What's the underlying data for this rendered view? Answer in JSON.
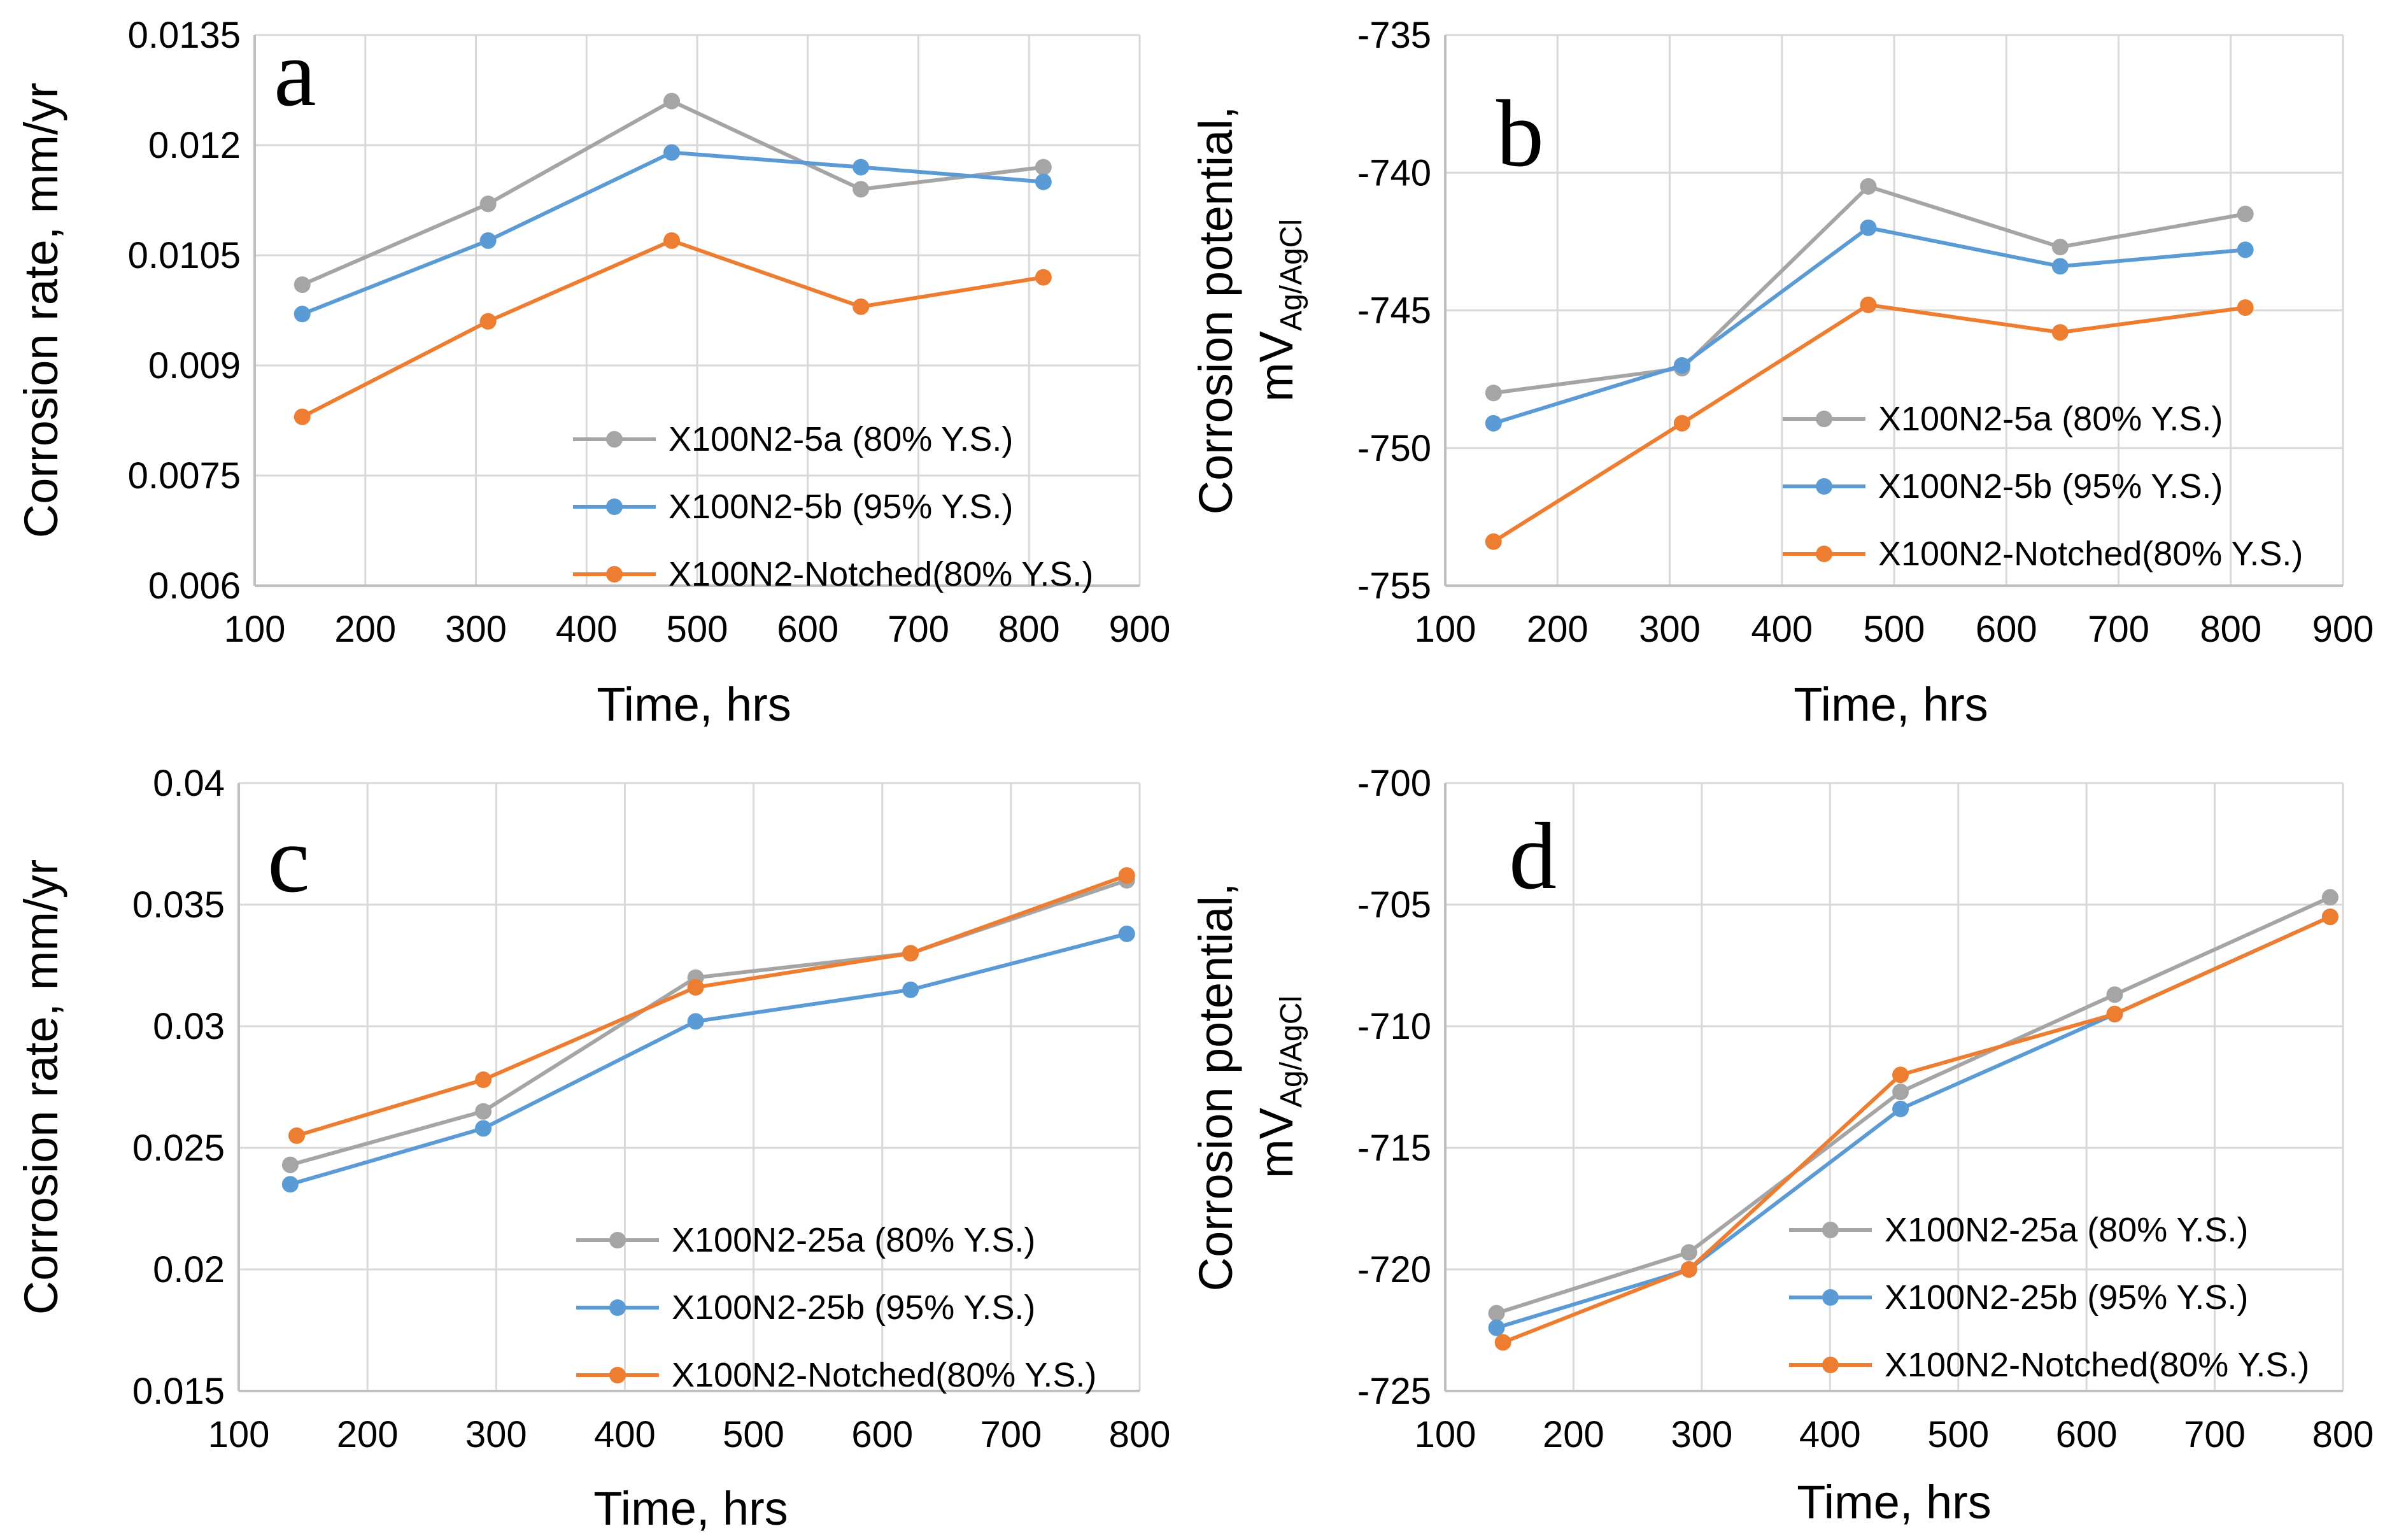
{
  "colors": {
    "gray": "#A5A5A5",
    "blue": "#5B9BD5",
    "orange": "#ED7D31",
    "grid": "#D9D9D9",
    "axis": "#BFBFBF"
  },
  "chart_data": [
    {
      "panel": "a",
      "type": "line",
      "xlabel": "Time, hrs",
      "ylabel": "Corrosion rate, mm/yr",
      "xlim": [
        100,
        900
      ],
      "xticks": [
        "100",
        "200",
        "300",
        "400",
        "500",
        "600",
        "700",
        "800",
        "900"
      ],
      "ylim": [
        0.006,
        0.0135
      ],
      "yticks": [
        "0.006",
        "0.0075",
        "0.009",
        "0.0105",
        "0.012",
        "0.0135"
      ],
      "grid": true,
      "legend_position": "bottom-right",
      "series": [
        {
          "name": "X100N2-5a (80% Y.S.)",
          "color": "gray",
          "x": [
            143,
            311,
            477,
            648,
            813
          ],
          "y": [
            0.0101,
            0.0112,
            0.0126,
            0.0114,
            0.0117
          ]
        },
        {
          "name": "X100N2-5b (95% Y.S.)",
          "color": "blue",
          "x": [
            143,
            311,
            477,
            648,
            813
          ],
          "y": [
            0.0097,
            0.0107,
            0.0119,
            0.0117,
            0.0115
          ]
        },
        {
          "name": "X100N2-Notched(80% Y.S.)",
          "color": "orange",
          "x": [
            143,
            311,
            477,
            648,
            813
          ],
          "y": [
            0.0083,
            0.0096,
            0.0107,
            0.0098,
            0.0102
          ]
        }
      ]
    },
    {
      "panel": "b",
      "type": "line",
      "xlabel": "Time, hrs",
      "ylabel": "Corrosion potential,",
      "ylabel_line2": "mV",
      "ylabel_sub": "Ag/AgCl",
      "xlim": [
        100,
        900
      ],
      "xticks": [
        "100",
        "200",
        "300",
        "400",
        "500",
        "600",
        "700",
        "800",
        "900"
      ],
      "ylim": [
        -755,
        -735
      ],
      "yticks": [
        "-755",
        "-750",
        "-745",
        "-740",
        "-735"
      ],
      "grid": true,
      "legend_position": "bottom-right",
      "series": [
        {
          "name": "X100N2-5a (80% Y.S.)",
          "color": "gray",
          "x": [
            143,
            311,
            477,
            648,
            813
          ],
          "y": [
            -748.0,
            -747.1,
            -740.5,
            -742.7,
            -741.5
          ]
        },
        {
          "name": "X100N2-5b (95% Y.S.)",
          "color": "blue",
          "x": [
            143,
            311,
            477,
            648,
            813
          ],
          "y": [
            -749.1,
            -747.0,
            -742.0,
            -743.4,
            -742.8
          ]
        },
        {
          "name": "X100N2-Notched(80% Y.S.)",
          "color": "orange",
          "x": [
            143,
            311,
            477,
            648,
            813
          ],
          "y": [
            -753.4,
            -749.1,
            -744.8,
            -745.8,
            -744.9
          ]
        }
      ]
    },
    {
      "panel": "c",
      "type": "line",
      "xlabel": "Time, hrs",
      "ylabel": "Corrosion rate, mm/yr",
      "xlim": [
        100,
        800
      ],
      "xticks": [
        "100",
        "200",
        "300",
        "400",
        "500",
        "600",
        "700",
        "800"
      ],
      "ylim": [
        0.015,
        0.04
      ],
      "yticks": [
        "0.015",
        "0.02",
        "0.025",
        "0.03",
        "0.035",
        "0.04"
      ],
      "grid": true,
      "legend_position": "bottom-right",
      "series": [
        {
          "name": "X100N2-25a (80% Y.S.)",
          "color": "gray",
          "x": [
            140,
            290,
            455,
            622,
            790
          ],
          "y": [
            0.0243,
            0.0265,
            0.032,
            0.033,
            0.036
          ]
        },
        {
          "name": "X100N2-25b (95% Y.S.)",
          "color": "blue",
          "x": [
            140,
            290,
            455,
            622,
            790
          ],
          "y": [
            0.0235,
            0.0258,
            0.0302,
            0.0315,
            0.0338
          ]
        },
        {
          "name": "X100N2-Notched(80% Y.S.)",
          "color": "orange",
          "x": [
            145,
            290,
            455,
            622,
            790
          ],
          "y": [
            0.0255,
            0.0278,
            0.0316,
            0.033,
            0.0362
          ]
        }
      ]
    },
    {
      "panel": "d",
      "type": "line",
      "xlabel": "Time, hrs",
      "ylabel": "Corrosion potential,",
      "ylabel_line2": "mV",
      "ylabel_sub": "Ag/AgCl",
      "xlim": [
        100,
        800
      ],
      "xticks": [
        "100",
        "200",
        "300",
        "400",
        "500",
        "600",
        "700",
        "800"
      ],
      "ylim": [
        -725,
        -700
      ],
      "yticks": [
        "-725",
        "-720",
        "-715",
        "-710",
        "-705",
        "-700"
      ],
      "grid": true,
      "legend_position": "bottom-right",
      "series": [
        {
          "name": "X100N2-25a (80% Y.S.)",
          "color": "gray",
          "x": [
            140,
            290,
            455,
            622,
            790
          ],
          "y": [
            -721.8,
            -719.3,
            -712.7,
            -708.7,
            -704.7
          ]
        },
        {
          "name": "X100N2-25b (95% Y.S.)",
          "color": "blue",
          "x": [
            140,
            290,
            455,
            622,
            790
          ],
          "y": [
            -722.4,
            -720.0,
            -713.4,
            -709.5,
            -705.5
          ]
        },
        {
          "name": "X100N2-Notched(80% Y.S.)",
          "color": "orange",
          "x": [
            145,
            290,
            455,
            622,
            790
          ],
          "y": [
            -723.0,
            -720.0,
            -712.0,
            -709.5,
            -705.5
          ]
        }
      ]
    }
  ]
}
